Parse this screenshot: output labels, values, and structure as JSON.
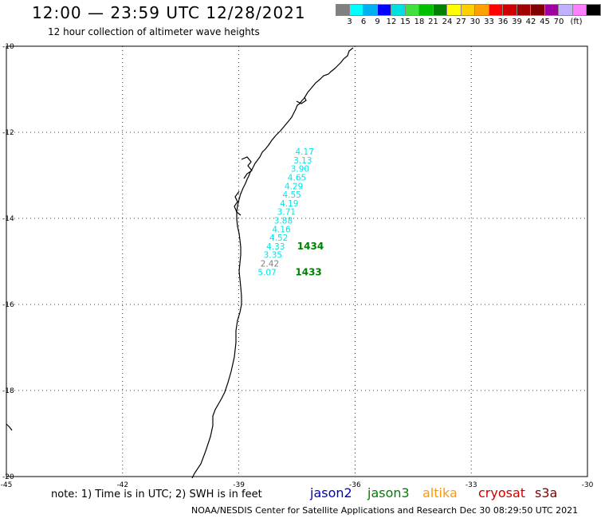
{
  "header": {
    "title": "12:00 — 23:59 UTC 12/28/2021",
    "subtitle": "12 hour collection of altimeter wave heights"
  },
  "colorbar": {
    "colors": [
      "#808080",
      "#00ffff",
      "#00b0f0",
      "#0000ff",
      "#00e0e0",
      "#40e040",
      "#00c000",
      "#008000",
      "#ffff00",
      "#ffd000",
      "#ffa000",
      "#ff0000",
      "#d00000",
      "#a00000",
      "#800000",
      "#a000a0",
      "#c0b0ff",
      "#ff80ff",
      "#000000"
    ],
    "labels": [
      "3",
      "6",
      "9",
      "12",
      "15",
      "18",
      "21",
      "24",
      "27",
      "30",
      "33",
      "36",
      "39",
      "42",
      "45",
      "70"
    ],
    "unit": "(ft)"
  },
  "axes": {
    "lat_ticks": [
      "-10",
      "-12",
      "-14",
      "-16",
      "-18",
      "-20"
    ],
    "lon_ticks": [
      "-45",
      "-42",
      "-39",
      "-36",
      "-33",
      "-30"
    ]
  },
  "observations": [
    {
      "value": "4.17",
      "lat": -12.52,
      "lon": -37.3,
      "color": "#00e5e5"
    },
    {
      "value": "3.13",
      "lat": -12.72,
      "lon": -37.35,
      "color": "#00e5e5"
    },
    {
      "value": "3.90",
      "lat": -12.92,
      "lon": -37.42,
      "color": "#00e5e5"
    },
    {
      "value": "4.65",
      "lat": -13.12,
      "lon": -37.5,
      "color": "#00e5e5"
    },
    {
      "value": "4.29",
      "lat": -13.32,
      "lon": -37.58,
      "color": "#00e5e5"
    },
    {
      "value": "4.55",
      "lat": -13.52,
      "lon": -37.63,
      "color": "#00e5e5"
    },
    {
      "value": "4.19",
      "lat": -13.72,
      "lon": -37.7,
      "color": "#00e5e5"
    },
    {
      "value": "3.71",
      "lat": -13.92,
      "lon": -37.77,
      "color": "#00e5e5"
    },
    {
      "value": "3.88",
      "lat": -14.12,
      "lon": -37.85,
      "color": "#00e5e5"
    },
    {
      "value": "4.16",
      "lat": -14.32,
      "lon": -37.9,
      "color": "#00e5e5"
    },
    {
      "value": "4.52",
      "lat": -14.52,
      "lon": -37.97,
      "color": "#00e5e5"
    },
    {
      "value": "4.33",
      "lat": -14.72,
      "lon": -38.05,
      "color": "#00e5e5"
    },
    {
      "value": "3.35",
      "lat": -14.92,
      "lon": -38.12,
      "color": "#00e5e5"
    },
    {
      "value": "2.42",
      "lat": -15.12,
      "lon": -38.2,
      "color": "#808080"
    },
    {
      "value": "5.07",
      "lat": -15.32,
      "lon": -38.27,
      "color": "#00e5e5"
    }
  ],
  "passes": [
    {
      "label": "1434",
      "lat": -14.72,
      "lon": -37.15,
      "color": "#008000"
    },
    {
      "label": "1433",
      "lat": -15.32,
      "lon": -37.2,
      "color": "#008000"
    }
  ],
  "footer": {
    "note": "note: 1) Time is in UTC; 2) SWH is in feet",
    "missions": [
      {
        "name": "jason2",
        "color": "#0000c0"
      },
      {
        "name": "jason3",
        "color": "#008000"
      },
      {
        "name": "altika",
        "color": "#ff9900"
      },
      {
        "name": "cryosat",
        "color": "#cc0000"
      },
      {
        "name": "s3a",
        "color": "#800000"
      }
    ],
    "credit": "NOAA/NESDIS Center for Satellite Applications and Research    Dec 30 08:29:50 UTC 2021"
  }
}
